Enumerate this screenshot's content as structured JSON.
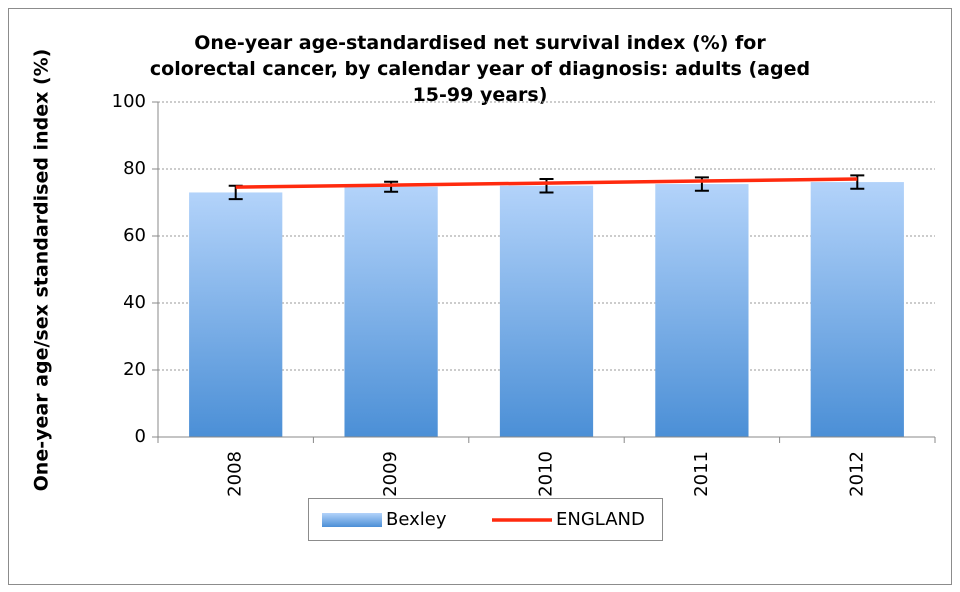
{
  "chart_data": {
    "type": "bar",
    "title": "One-year age-standardised net survival index (%) for colorectal cancer, by calendar year of diagnosis: adults (aged 15-99 years)",
    "ylabel": "One-year age/sex standardised index (%)",
    "categories": [
      "2008",
      "2009",
      "2010",
      "2011",
      "2012"
    ],
    "series": [
      {
        "name": "Bexley",
        "type": "bar",
        "color": "#6fa8e8",
        "values": [
          73,
          74.7,
          75,
          75.5,
          76.1
        ],
        "errors": [
          2,
          1.5,
          2,
          2,
          2
        ]
      },
      {
        "name": "ENGLAND",
        "type": "line",
        "color": "#ff2a0e",
        "values": [
          74.6,
          75.2,
          75.8,
          76.4,
          77
        ]
      }
    ],
    "ylim": [
      0,
      100
    ],
    "yticks": [
      0,
      20,
      40,
      60,
      80,
      100
    ],
    "grid": true
  }
}
